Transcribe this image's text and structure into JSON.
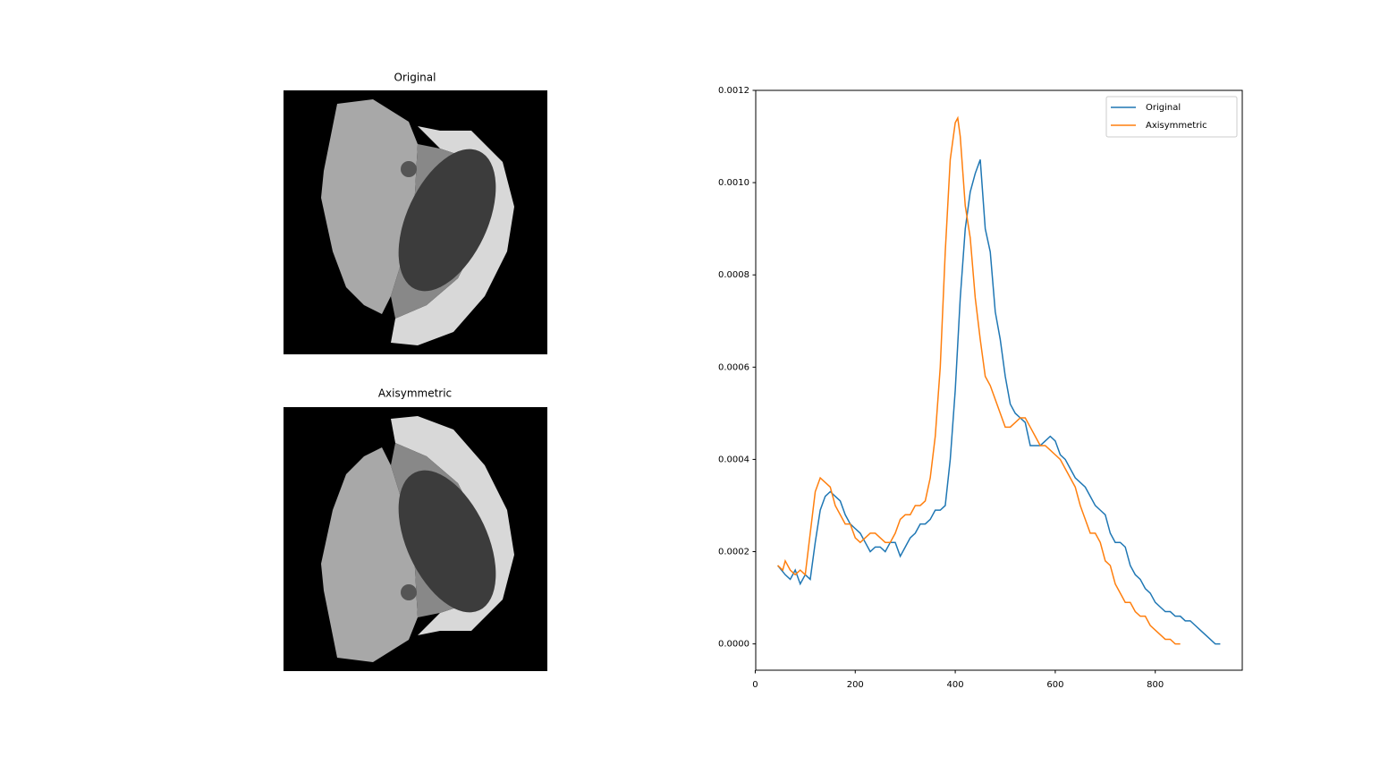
{
  "images": [
    {
      "title": "Original"
    },
    {
      "title": "Axisymmetric"
    }
  ],
  "chart_data": {
    "type": "line",
    "xlim": [
      1,
      974
    ],
    "xticks": [
      0,
      200,
      400,
      600,
      800
    ],
    "ylim": [
      -5.7e-05,
      0.0012
    ],
    "yticks": [
      {
        "value": 0,
        "label": "0.0000"
      },
      {
        "value": 0.0002,
        "label": "0.0002"
      },
      {
        "value": 0.0004,
        "label": "0.0004"
      },
      {
        "value": 0.0006,
        "label": "0.0006"
      },
      {
        "value": 0.0008,
        "label": "0.0008"
      },
      {
        "value": 0.001,
        "label": "0.0010"
      },
      {
        "value": 0.0012,
        "label": "0.0012"
      }
    ],
    "legend": "upper right",
    "series": [
      {
        "name": "Original",
        "color": "#1f77b4",
        "x": [
          45,
          60,
          70,
          80,
          90,
          100,
          110,
          120,
          130,
          140,
          150,
          160,
          170,
          180,
          190,
          200,
          210,
          220,
          230,
          240,
          250,
          260,
          270,
          280,
          290,
          300,
          310,
          320,
          330,
          340,
          350,
          360,
          370,
          380,
          390,
          400,
          410,
          420,
          430,
          440,
          450,
          460,
          470,
          480,
          490,
          500,
          510,
          520,
          530,
          540,
          550,
          560,
          570,
          580,
          590,
          600,
          610,
          620,
          630,
          640,
          650,
          660,
          670,
          680,
          690,
          700,
          710,
          720,
          730,
          740,
          750,
          760,
          770,
          780,
          790,
          800,
          810,
          820,
          830,
          840,
          850,
          860,
          870,
          880,
          890,
          900,
          910,
          920,
          930
        ],
        "values": [
          0.00017,
          0.00015,
          0.00014,
          0.00016,
          0.00013,
          0.00015,
          0.00014,
          0.00022,
          0.00029,
          0.00032,
          0.00033,
          0.00032,
          0.00031,
          0.00028,
          0.00026,
          0.00025,
          0.00024,
          0.00022,
          0.0002,
          0.00021,
          0.00021,
          0.0002,
          0.00022,
          0.00022,
          0.00019,
          0.00021,
          0.00023,
          0.00024,
          0.00026,
          0.00026,
          0.00027,
          0.00029,
          0.00029,
          0.0003,
          0.0004,
          0.00055,
          0.00075,
          0.0009,
          0.00098,
          0.00102,
          0.00105,
          0.0009,
          0.00085,
          0.00072,
          0.00066,
          0.00058,
          0.00052,
          0.0005,
          0.00049,
          0.00048,
          0.00043,
          0.00043,
          0.00043,
          0.00044,
          0.00045,
          0.00044,
          0.00041,
          0.0004,
          0.00038,
          0.00036,
          0.00035,
          0.00034,
          0.00032,
          0.0003,
          0.00029,
          0.00028,
          0.00024,
          0.00022,
          0.00022,
          0.00021,
          0.00017,
          0.00015,
          0.00014,
          0.00012,
          0.00011,
          9e-05,
          8e-05,
          7e-05,
          7e-05,
          6e-05,
          6e-05,
          5e-05,
          5e-05,
          4e-05,
          3e-05,
          2e-05,
          1e-05,
          0,
          0
        ]
      },
      {
        "name": "Axisymmetric",
        "color": "#ff7f0e",
        "x": [
          45,
          55,
          60,
          70,
          80,
          90,
          100,
          110,
          120,
          130,
          140,
          150,
          160,
          170,
          180,
          190,
          200,
          210,
          220,
          230,
          240,
          250,
          260,
          270,
          280,
          290,
          300,
          310,
          320,
          330,
          340,
          350,
          360,
          370,
          380,
          390,
          400,
          405,
          410,
          420,
          430,
          440,
          450,
          460,
          470,
          480,
          490,
          500,
          510,
          520,
          530,
          540,
          550,
          560,
          570,
          580,
          590,
          600,
          610,
          620,
          630,
          640,
          650,
          660,
          670,
          680,
          690,
          700,
          710,
          720,
          730,
          740,
          750,
          760,
          770,
          780,
          790,
          800,
          810,
          820,
          830,
          840,
          850
        ],
        "values": [
          0.00017,
          0.00016,
          0.00018,
          0.00016,
          0.00015,
          0.00016,
          0.00015,
          0.00024,
          0.00033,
          0.00036,
          0.00035,
          0.00034,
          0.0003,
          0.00028,
          0.00026,
          0.00026,
          0.00023,
          0.00022,
          0.00023,
          0.00024,
          0.00024,
          0.00023,
          0.00022,
          0.00022,
          0.00024,
          0.00027,
          0.00028,
          0.00028,
          0.0003,
          0.0003,
          0.00031,
          0.00036,
          0.00045,
          0.0006,
          0.00085,
          0.00105,
          0.00113,
          0.00114,
          0.0011,
          0.00095,
          0.00088,
          0.00075,
          0.00066,
          0.00058,
          0.00056,
          0.00053,
          0.0005,
          0.00047,
          0.00047,
          0.00048,
          0.00049,
          0.00049,
          0.00047,
          0.00045,
          0.00043,
          0.00043,
          0.00042,
          0.00041,
          0.0004,
          0.00038,
          0.00036,
          0.00034,
          0.0003,
          0.00027,
          0.00024,
          0.00024,
          0.00022,
          0.00018,
          0.00017,
          0.00013,
          0.00011,
          9e-05,
          9e-05,
          7e-05,
          6e-05,
          6e-05,
          4e-05,
          3e-05,
          2e-05,
          1e-05,
          1e-05,
          0,
          0
        ]
      }
    ]
  }
}
